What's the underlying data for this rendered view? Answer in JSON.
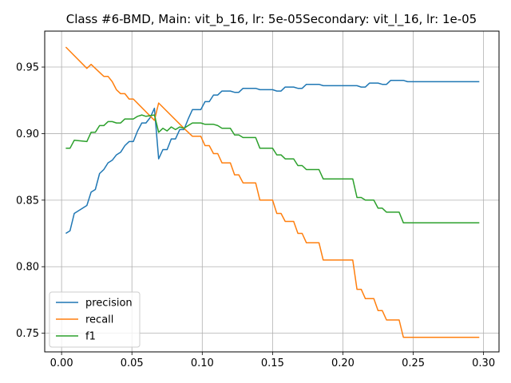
{
  "chart_data": {
    "type": "line",
    "title": "Class #6-BMD, Main: vit_b_16, lr: 5e-05Secondary: vit_l_16, lr: 1e-05",
    "xlabel": "",
    "ylabel": "",
    "xlim": [
      -0.012,
      0.311
    ],
    "ylim": [
      0.736,
      0.977
    ],
    "grid": true,
    "legend_position": "lower-left",
    "x_ticks": [
      0.0,
      0.05,
      0.1,
      0.15,
      0.2,
      0.25,
      0.3
    ],
    "x_tick_labels": [
      "0.00",
      "0.05",
      "0.10",
      "0.15",
      "0.20",
      "0.25",
      "0.30"
    ],
    "y_ticks": [
      0.75,
      0.8,
      0.85,
      0.9,
      0.95
    ],
    "y_tick_labels": [
      "0.75",
      "0.80",
      "0.85",
      "0.90",
      "0.95"
    ],
    "series": [
      {
        "name": "precision",
        "color": "#1f77b4",
        "points": [
          [
            0.003,
            0.825
          ],
          [
            0.006,
            0.827
          ],
          [
            0.009,
            0.84
          ],
          [
            0.018,
            0.846
          ],
          [
            0.021,
            0.856
          ],
          [
            0.024,
            0.858
          ],
          [
            0.027,
            0.87
          ],
          [
            0.03,
            0.873
          ],
          [
            0.033,
            0.878
          ],
          [
            0.036,
            0.88
          ],
          [
            0.039,
            0.884
          ],
          [
            0.042,
            0.886
          ],
          [
            0.045,
            0.891
          ],
          [
            0.048,
            0.894
          ],
          [
            0.051,
            0.894
          ],
          [
            0.054,
            0.902
          ],
          [
            0.057,
            0.908
          ],
          [
            0.06,
            0.908
          ],
          [
            0.063,
            0.912
          ],
          [
            0.066,
            0.919
          ],
          [
            0.069,
            0.881
          ],
          [
            0.072,
            0.888
          ],
          [
            0.075,
            0.888
          ],
          [
            0.078,
            0.896
          ],
          [
            0.081,
            0.896
          ],
          [
            0.084,
            0.903
          ],
          [
            0.087,
            0.903
          ],
          [
            0.09,
            0.911
          ],
          [
            0.093,
            0.918
          ],
          [
            0.096,
            0.918
          ],
          [
            0.099,
            0.918
          ],
          [
            0.102,
            0.924
          ],
          [
            0.105,
            0.924
          ],
          [
            0.108,
            0.929
          ],
          [
            0.111,
            0.929
          ],
          [
            0.114,
            0.932
          ],
          [
            0.12,
            0.932
          ],
          [
            0.123,
            0.931
          ],
          [
            0.126,
            0.931
          ],
          [
            0.129,
            0.934
          ],
          [
            0.138,
            0.934
          ],
          [
            0.141,
            0.933
          ],
          [
            0.15,
            0.933
          ],
          [
            0.153,
            0.932
          ],
          [
            0.156,
            0.932
          ],
          [
            0.159,
            0.935
          ],
          [
            0.165,
            0.935
          ],
          [
            0.168,
            0.934
          ],
          [
            0.171,
            0.934
          ],
          [
            0.174,
            0.937
          ],
          [
            0.183,
            0.937
          ],
          [
            0.186,
            0.936
          ],
          [
            0.21,
            0.936
          ],
          [
            0.213,
            0.935
          ],
          [
            0.216,
            0.935
          ],
          [
            0.219,
            0.938
          ],
          [
            0.225,
            0.938
          ],
          [
            0.228,
            0.937
          ],
          [
            0.231,
            0.937
          ],
          [
            0.234,
            0.94
          ],
          [
            0.243,
            0.94
          ],
          [
            0.246,
            0.939
          ],
          [
            0.297,
            0.939
          ]
        ]
      },
      {
        "name": "recall",
        "color": "#ff7f0e",
        "points": [
          [
            0.003,
            0.965
          ],
          [
            0.018,
            0.949
          ],
          [
            0.021,
            0.952
          ],
          [
            0.03,
            0.943
          ],
          [
            0.033,
            0.943
          ],
          [
            0.036,
            0.939
          ],
          [
            0.039,
            0.933
          ],
          [
            0.042,
            0.93
          ],
          [
            0.045,
            0.93
          ],
          [
            0.048,
            0.926
          ],
          [
            0.051,
            0.926
          ],
          [
            0.066,
            0.91
          ],
          [
            0.069,
            0.923
          ],
          [
            0.087,
            0.904
          ],
          [
            0.09,
            0.901
          ],
          [
            0.093,
            0.898
          ],
          [
            0.099,
            0.898
          ],
          [
            0.102,
            0.891
          ],
          [
            0.105,
            0.891
          ],
          [
            0.108,
            0.885
          ],
          [
            0.111,
            0.885
          ],
          [
            0.114,
            0.878
          ],
          [
            0.12,
            0.878
          ],
          [
            0.123,
            0.869
          ],
          [
            0.126,
            0.869
          ],
          [
            0.129,
            0.863
          ],
          [
            0.138,
            0.863
          ],
          [
            0.141,
            0.85
          ],
          [
            0.15,
            0.85
          ],
          [
            0.153,
            0.84
          ],
          [
            0.156,
            0.84
          ],
          [
            0.159,
            0.834
          ],
          [
            0.165,
            0.834
          ],
          [
            0.168,
            0.825
          ],
          [
            0.171,
            0.825
          ],
          [
            0.174,
            0.818
          ],
          [
            0.183,
            0.818
          ],
          [
            0.186,
            0.805
          ],
          [
            0.207,
            0.805
          ],
          [
            0.21,
            0.783
          ],
          [
            0.213,
            0.783
          ],
          [
            0.216,
            0.776
          ],
          [
            0.222,
            0.776
          ],
          [
            0.225,
            0.767
          ],
          [
            0.228,
            0.767
          ],
          [
            0.231,
            0.76
          ],
          [
            0.24,
            0.76
          ],
          [
            0.243,
            0.747
          ],
          [
            0.297,
            0.747
          ]
        ]
      },
      {
        "name": "f1",
        "color": "#2ca02c",
        "points": [
          [
            0.003,
            0.889
          ],
          [
            0.006,
            0.889
          ],
          [
            0.009,
            0.895
          ],
          [
            0.018,
            0.894
          ],
          [
            0.021,
            0.901
          ],
          [
            0.024,
            0.901
          ],
          [
            0.027,
            0.906
          ],
          [
            0.03,
            0.906
          ],
          [
            0.033,
            0.909
          ],
          [
            0.036,
            0.909
          ],
          [
            0.039,
            0.908
          ],
          [
            0.042,
            0.908
          ],
          [
            0.045,
            0.911
          ],
          [
            0.051,
            0.911
          ],
          [
            0.054,
            0.913
          ],
          [
            0.057,
            0.914
          ],
          [
            0.06,
            0.913
          ],
          [
            0.066,
            0.914
          ],
          [
            0.069,
            0.901
          ],
          [
            0.072,
            0.904
          ],
          [
            0.075,
            0.902
          ],
          [
            0.078,
            0.905
          ],
          [
            0.081,
            0.903
          ],
          [
            0.084,
            0.905
          ],
          [
            0.087,
            0.904
          ],
          [
            0.09,
            0.906
          ],
          [
            0.093,
            0.908
          ],
          [
            0.099,
            0.908
          ],
          [
            0.102,
            0.907
          ],
          [
            0.108,
            0.907
          ],
          [
            0.111,
            0.906
          ],
          [
            0.114,
            0.904
          ],
          [
            0.12,
            0.904
          ],
          [
            0.123,
            0.899
          ],
          [
            0.126,
            0.899
          ],
          [
            0.129,
            0.897
          ],
          [
            0.138,
            0.897
          ],
          [
            0.141,
            0.889
          ],
          [
            0.15,
            0.889
          ],
          [
            0.153,
            0.884
          ],
          [
            0.156,
            0.884
          ],
          [
            0.159,
            0.881
          ],
          [
            0.165,
            0.881
          ],
          [
            0.168,
            0.876
          ],
          [
            0.171,
            0.876
          ],
          [
            0.174,
            0.873
          ],
          [
            0.183,
            0.873
          ],
          [
            0.186,
            0.866
          ],
          [
            0.207,
            0.866
          ],
          [
            0.21,
            0.852
          ],
          [
            0.213,
            0.852
          ],
          [
            0.216,
            0.85
          ],
          [
            0.222,
            0.85
          ],
          [
            0.225,
            0.844
          ],
          [
            0.228,
            0.844
          ],
          [
            0.231,
            0.841
          ],
          [
            0.24,
            0.841
          ],
          [
            0.243,
            0.833
          ],
          [
            0.297,
            0.833
          ]
        ]
      }
    ]
  }
}
